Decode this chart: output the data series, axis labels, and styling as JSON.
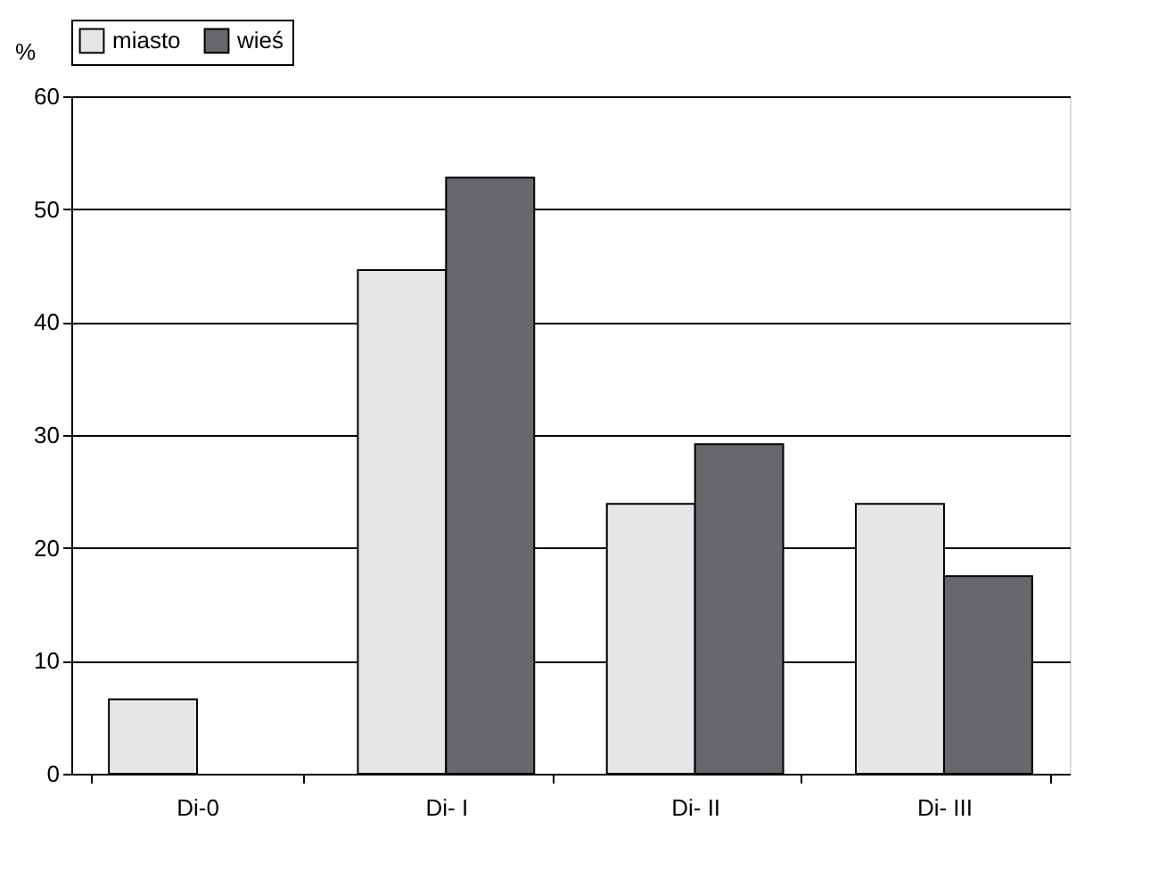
{
  "chart_data": {
    "type": "bar",
    "ylabel": "%",
    "categories": [
      "Di-0",
      "Di- I",
      "Di- II",
      "Di- III"
    ],
    "series": [
      {
        "name": "miasto",
        "color": "#e5e6e8",
        "values": [
          6.6,
          44.6,
          23.9,
          23.9
        ]
      },
      {
        "name": "wieś",
        "color": "#67686c",
        "values": [
          null,
          52.8,
          29.2,
          17.5
        ]
      }
    ],
    "ylim": [
      0,
      60
    ],
    "yticks": [
      0,
      10,
      20,
      30,
      40,
      50,
      60
    ],
    "grid": "y",
    "legend": "top"
  }
}
